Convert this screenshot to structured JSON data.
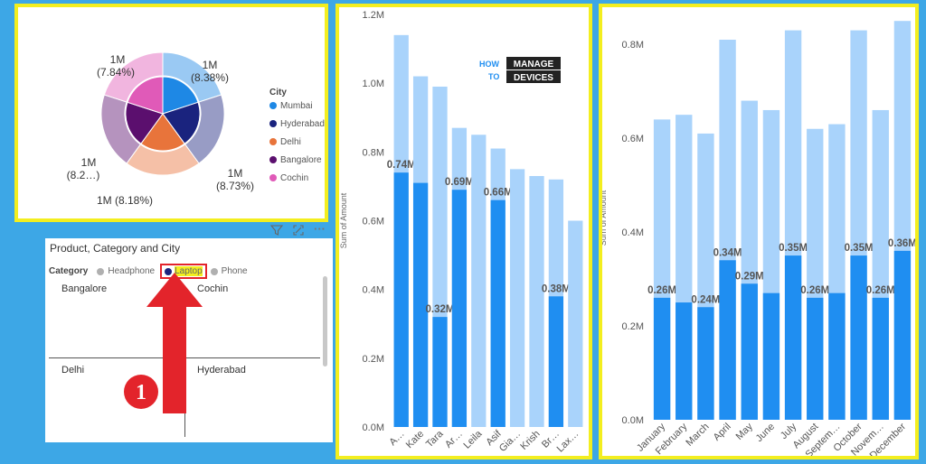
{
  "colors": {
    "bg": "#3da7e6",
    "highlight_border": "#f3ee1f",
    "bar_light": "#a9d3fb",
    "bar_dark": "#1f8ef1",
    "annotation_red": "#e3242b"
  },
  "donut": {
    "legend_title": "City",
    "legend": [
      {
        "name": "Mumbai",
        "color": "#1e88e5"
      },
      {
        "name": "Hyderabad",
        "color": "#1a237e"
      },
      {
        "name": "Delhi",
        "color": "#e8743b"
      },
      {
        "name": "Bangalore",
        "color": "#5b0f6e"
      },
      {
        "name": "Cochin",
        "color": "#e05ab8"
      }
    ],
    "labels": [
      {
        "line1": "1M",
        "line2": "(8.38%)"
      },
      {
        "line1": "1M",
        "line2": "(8.73%)"
      },
      {
        "line1": "1M (8.18%)",
        "line2": ""
      },
      {
        "line1": "1M",
        "line2": "(8.2…)"
      },
      {
        "line1": "1M",
        "line2": "(7.84%)"
      }
    ]
  },
  "matrix": {
    "title": "Product, Category and City",
    "category_label": "Category",
    "categories": [
      {
        "name": "Headphone",
        "color": "#b0b0b0"
      },
      {
        "name": "Laptop",
        "color": "#1a237e"
      },
      {
        "name": "Phone",
        "color": "#b0b0b0"
      }
    ],
    "cells": [
      "Bangalore",
      "Cochin",
      "Delhi",
      "Hyderabad"
    ],
    "step_number": "1"
  },
  "icons": [
    "filter-icon",
    "focus-mode-icon",
    "more-options-icon"
  ],
  "chart_data": [
    {
      "type": "bar",
      "ylabel": "Sum of Amount",
      "ylim": [
        0,
        1.2
      ],
      "yticks": [
        "0.0M",
        "0.2M",
        "0.4M",
        "0.6M",
        "0.8M",
        "1.0M",
        "1.2M"
      ],
      "categories": [
        "A…",
        "Kate",
        "Tara",
        "Ar…",
        "Leila",
        "Asif",
        "Gia…",
        "Krish",
        "Br…",
        "Lax…"
      ],
      "series": [
        {
          "values": [
            1.14,
            1.02,
            0.99,
            0.87,
            0.85,
            0.81,
            0.75,
            0.73,
            0.72,
            0.6
          ]
        },
        {
          "values": [
            0.74,
            0.71,
            0.32,
            0.69,
            null,
            0.66,
            null,
            null,
            0.38,
            null
          ]
        }
      ],
      "data_labels": [
        "0.74M",
        "",
        "0.32M",
        "0.69M",
        "",
        "0.66M",
        "",
        "",
        "0.38M",
        ""
      ]
    },
    {
      "type": "bar",
      "ylabel": "Sum of Amount",
      "ylim": [
        0,
        0.86
      ],
      "yticks": [
        "0.0M",
        "0.2M",
        "0.4M",
        "0.6M",
        "0.8M"
      ],
      "categories": [
        "January",
        "February",
        "March",
        "April",
        "May",
        "June",
        "July",
        "August",
        "Septem…",
        "October",
        "Novem…",
        "December"
      ],
      "series": [
        {
          "values": [
            0.64,
            0.65,
            0.61,
            0.81,
            0.68,
            0.66,
            0.83,
            0.62,
            0.63,
            0.83,
            0.66,
            0.85
          ]
        },
        {
          "values": [
            0.26,
            0.25,
            0.24,
            0.34,
            0.29,
            0.27,
            0.35,
            0.26,
            0.27,
            0.35,
            0.26,
            0.36
          ]
        }
      ],
      "data_labels": [
        "0.26M",
        "",
        "0.24M",
        "0.34M",
        "0.29M",
        "",
        "0.35M",
        "0.26M",
        "",
        "0.35M",
        "0.26M",
        "0.36M"
      ]
    }
  ],
  "watermark": {
    "line1": "HOW",
    "line2": "TO",
    "line3": "MANAGE",
    "line4": "DEVICES"
  }
}
